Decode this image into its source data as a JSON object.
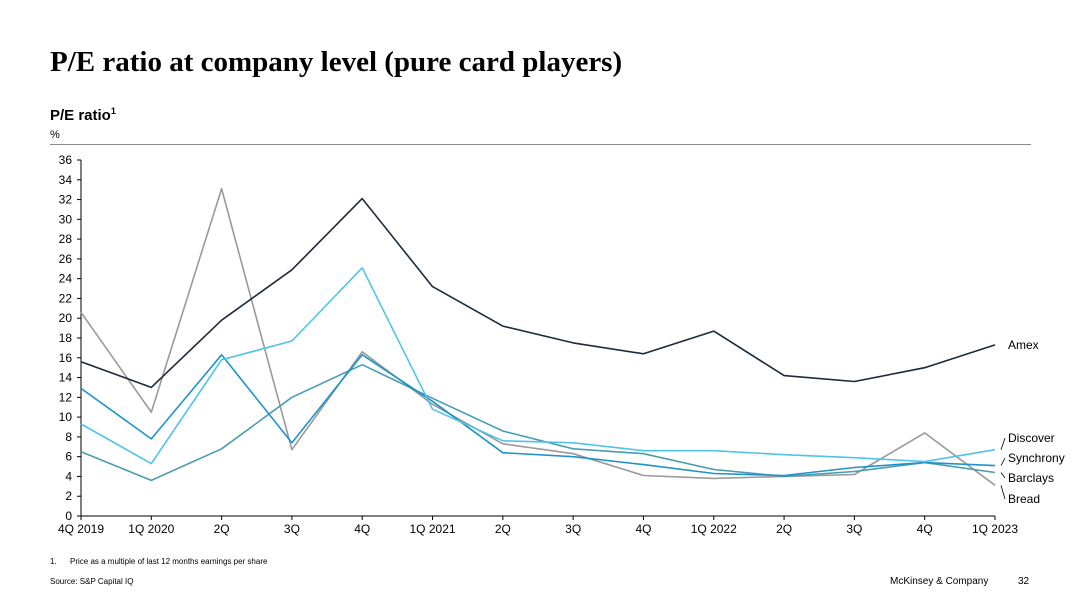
{
  "page": {
    "title": "P/E ratio at company level (pure card players)",
    "ylabel": "P/E ratio",
    "ylabel_sup": "1",
    "unit": "%",
    "footnote_number": "1.",
    "footnote_text": "Price as a multiple of last 12 months earnings per share",
    "source": "Source: S&P Capital IQ",
    "brand": "McKinsey & Company",
    "page_number": "32"
  },
  "chart_data": {
    "type": "line",
    "title": "P/E ratio at company level (pure card players)",
    "ylabel": "P/E ratio",
    "yunit": "%",
    "x": [
      "4Q 2019",
      "1Q 2020",
      "2Q",
      "3Q",
      "4Q",
      "1Q 2021",
      "2Q",
      "3Q",
      "4Q",
      "1Q 2022",
      "2Q",
      "3Q",
      "4Q",
      "1Q 2023"
    ],
    "ylim": [
      0,
      36
    ],
    "yticks": [
      0,
      2,
      4,
      6,
      8,
      10,
      12,
      14,
      16,
      18,
      20,
      22,
      24,
      26,
      28,
      30,
      32,
      34,
      36
    ],
    "grid": false,
    "legend": "direct labels at right end of lines",
    "series": [
      {
        "name": "Amex",
        "color": "#1a2b3c",
        "values": [
          15.6,
          13.0,
          19.8,
          24.9,
          32.1,
          23.2,
          19.2,
          17.5,
          16.4,
          18.7,
          14.2,
          13.6,
          15.0,
          17.3
        ]
      },
      {
        "name": "Discover",
        "color": "#4fc3e8",
        "values": [
          9.3,
          5.3,
          15.8,
          17.7,
          25.1,
          10.8,
          7.6,
          7.4,
          6.6,
          6.6,
          6.2,
          5.9,
          5.5,
          6.7
        ]
      },
      {
        "name": "Synchrony",
        "color": "#1f93c9",
        "values": [
          12.9,
          7.8,
          16.3,
          7.4,
          16.3,
          11.6,
          6.4,
          6.0,
          5.2,
          4.3,
          4.1,
          4.9,
          5.4,
          5.1
        ]
      },
      {
        "name": "Barclays",
        "color": "#4a9db0",
        "values": [
          6.5,
          3.6,
          6.8,
          12.0,
          15.3,
          11.9,
          8.6,
          6.8,
          6.3,
          4.7,
          4.0,
          4.5,
          5.4,
          4.4
        ]
      },
      {
        "name": "Bread",
        "color": "#9a9a9a",
        "values": [
          20.6,
          10.5,
          33.1,
          6.7,
          16.6,
          11.3,
          7.3,
          6.3,
          4.1,
          3.8,
          4.0,
          4.2,
          8.4,
          3.1
        ]
      }
    ]
  }
}
